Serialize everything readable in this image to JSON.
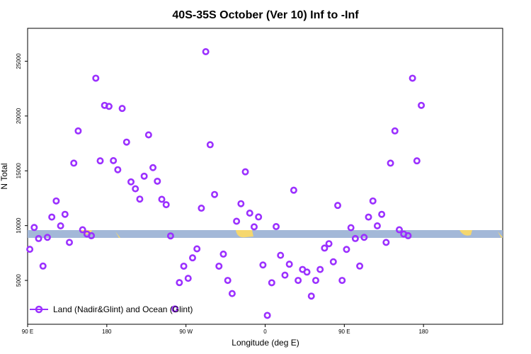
{
  "chart_data": {
    "type": "scatter",
    "title": "40S-35S October (Ver 10)   Inf to -Inf",
    "xlabel": "Longitude (deg E)",
    "ylabel": "N Total",
    "xlim": [
      0,
      540
    ],
    "ylim": [
      1000,
      28000
    ],
    "x_ticks": [
      {
        "value": 0,
        "label": "90 E"
      },
      {
        "value": 90,
        "label": "180"
      },
      {
        "value": 180,
        "label": "90 W"
      },
      {
        "value": 270,
        "label": "0"
      },
      {
        "value": 360,
        "label": "90 E"
      },
      {
        "value": 450,
        "label": "180"
      }
    ],
    "y_ticks": [
      {
        "value": 5000,
        "label": "5000"
      },
      {
        "value": 10000,
        "label": "10000"
      },
      {
        "value": 15000,
        "label": "15000"
      },
      {
        "value": 20000,
        "label": "20000"
      },
      {
        "value": 25000,
        "label": "25000"
      }
    ],
    "legend": {
      "position": "bottom-left",
      "entries": [
        "Land (Nadir&Glint) and Ocean (Glint)"
      ]
    },
    "colors": {
      "series": "#9b30ff",
      "band": "#a3b8d8",
      "land": "#f5d76e"
    },
    "series": [
      {
        "points": [
          [
            2.5,
            7840
          ],
          [
            7.5,
            9830
          ],
          [
            12.5,
            8820
          ],
          [
            17.5,
            6310
          ],
          [
            22.5,
            8930
          ],
          [
            27.5,
            10780
          ],
          [
            32.5,
            12250
          ],
          [
            37.5,
            9980
          ],
          [
            42.5,
            11030
          ],
          [
            47.5,
            8470
          ],
          [
            52.5,
            15700
          ],
          [
            57.5,
            18640
          ],
          [
            62.5,
            9620
          ],
          [
            67.5,
            9230
          ],
          [
            72.5,
            9080
          ],
          [
            77.5,
            23450
          ],
          [
            82.5,
            15910
          ],
          [
            87.5,
            20970
          ],
          [
            92.5,
            20880
          ],
          [
            97.5,
            15930
          ],
          [
            102.5,
            15100
          ],
          [
            107.5,
            20690
          ],
          [
            112.5,
            17620
          ],
          [
            117.5,
            13990
          ],
          [
            122.5,
            13360
          ],
          [
            127.5,
            12420
          ],
          [
            132.5,
            14510
          ],
          [
            137.5,
            18280
          ],
          [
            142.5,
            15290
          ],
          [
            147.5,
            14050
          ],
          [
            152.5,
            12400
          ],
          [
            157.5,
            11910
          ],
          [
            162.5,
            9060
          ],
          [
            167.5,
            2400
          ],
          [
            172.5,
            4800
          ],
          [
            177.5,
            6300
          ],
          [
            182.5,
            5190
          ],
          [
            187.5,
            7060
          ],
          [
            192.5,
            7880
          ],
          [
            197.5,
            11590
          ],
          [
            202.5,
            25870
          ],
          [
            207.5,
            17380
          ],
          [
            212.5,
            12840
          ],
          [
            217.5,
            6300
          ],
          [
            222.5,
            7400
          ],
          [
            227.5,
            5000
          ],
          [
            232.5,
            3800
          ],
          [
            237.5,
            10400
          ],
          [
            242.5,
            12000
          ],
          [
            247.5,
            14910
          ],
          [
            252.5,
            11140
          ],
          [
            257.5,
            9890
          ],
          [
            262.5,
            10790
          ],
          [
            267.5,
            6410
          ],
          [
            272.5,
            1810
          ],
          [
            277.5,
            4790
          ],
          [
            282.5,
            9910
          ],
          [
            287.5,
            7290
          ],
          [
            292.5,
            5480
          ],
          [
            297.5,
            6480
          ],
          [
            302.5,
            13230
          ],
          [
            307.5,
            5000
          ],
          [
            312.5,
            6000
          ],
          [
            317.5,
            5760
          ],
          [
            322.5,
            3570
          ],
          [
            327.5,
            5000
          ],
          [
            332.5,
            6000
          ],
          [
            337.5,
            7950
          ],
          [
            342.5,
            8350
          ],
          [
            347.5,
            6700
          ],
          [
            352.5,
            11840
          ],
          [
            357.5,
            5000
          ],
          [
            362.5,
            7830
          ],
          [
            367.5,
            9810
          ],
          [
            372.5,
            8820
          ],
          [
            377.5,
            6310
          ],
          [
            382.5,
            8930
          ],
          [
            387.5,
            10780
          ],
          [
            392.5,
            12250
          ],
          [
            397.5,
            9980
          ],
          [
            402.5,
            11030
          ],
          [
            407.5,
            8470
          ],
          [
            412.5,
            15700
          ],
          [
            417.5,
            18640
          ],
          [
            422.5,
            9620
          ],
          [
            427.5,
            9230
          ],
          [
            432.5,
            9080
          ],
          [
            437.5,
            23450
          ],
          [
            442.5,
            15910
          ],
          [
            447.5,
            20970
          ]
        ]
      }
    ]
  }
}
